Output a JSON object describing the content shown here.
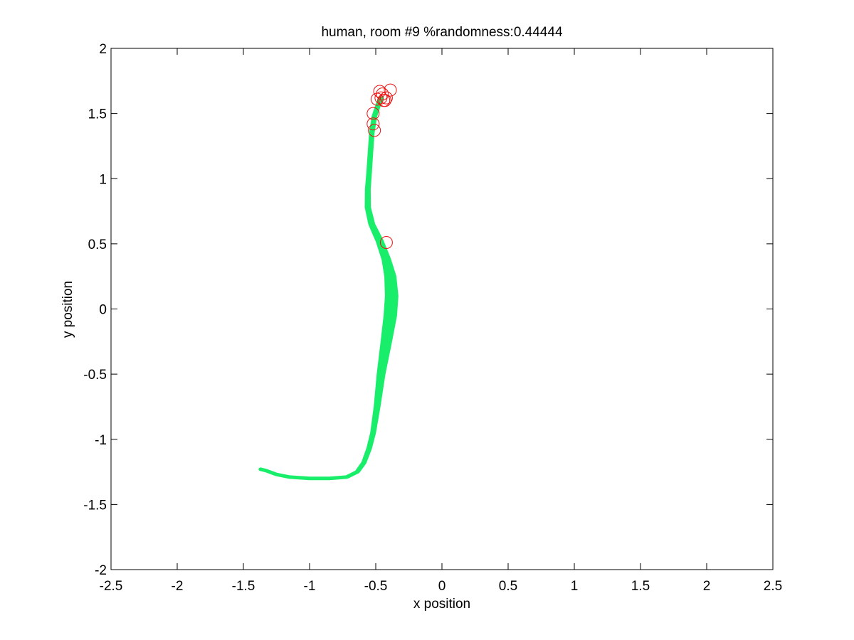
{
  "chart_data": {
    "type": "line",
    "title": "human, room #9 %randomness:0.44444",
    "xlabel": "x position",
    "ylabel": "y position",
    "xlim": [
      -2.5,
      2.5
    ],
    "ylim": [
      -2,
      2
    ],
    "xticks": [
      -2.5,
      -2,
      -1.5,
      -1,
      -0.5,
      0,
      0.5,
      1,
      1.5,
      2,
      2.5
    ],
    "yticks": [
      -2,
      -1.5,
      -1,
      -0.5,
      0,
      0.5,
      1,
      1.5,
      2
    ],
    "xtick_labels": [
      "-2.5",
      "-2",
      "-1.5",
      "-1",
      "-0.5",
      "0",
      "0.5",
      "1",
      "1.5",
      "2",
      "2.5"
    ],
    "ytick_labels": [
      "-2",
      "-1.5",
      "-1",
      "-0.5",
      "0",
      "0.5",
      "1",
      "1.5",
      "2"
    ],
    "grid": false,
    "series": [
      {
        "color": "#19ee6b",
        "style": "trajectory-band",
        "points": [
          [
            -1.37,
            -1.23
          ],
          [
            -1.33,
            -1.24
          ],
          [
            -1.25,
            -1.27
          ],
          [
            -1.15,
            -1.29
          ],
          [
            -1.0,
            -1.3
          ],
          [
            -0.85,
            -1.3
          ],
          [
            -0.72,
            -1.29
          ],
          [
            -0.64,
            -1.25
          ],
          [
            -0.59,
            -1.18
          ],
          [
            -0.55,
            -1.07
          ],
          [
            -0.52,
            -0.95
          ],
          [
            -0.49,
            -0.75
          ],
          [
            -0.46,
            -0.5
          ],
          [
            -0.42,
            -0.25
          ],
          [
            -0.39,
            -0.05
          ],
          [
            -0.38,
            0.1
          ],
          [
            -0.39,
            0.25
          ],
          [
            -0.42,
            0.38
          ],
          [
            -0.47,
            0.52
          ],
          [
            -0.53,
            0.65
          ],
          [
            -0.56,
            0.78
          ],
          [
            -0.56,
            0.92
          ],
          [
            -0.55,
            1.05
          ],
          [
            -0.54,
            1.2
          ],
          [
            -0.53,
            1.35
          ],
          [
            -0.51,
            1.48
          ],
          [
            -0.48,
            1.57
          ],
          [
            -0.46,
            1.62
          ]
        ],
        "band_width": [
          0.01,
          0.012,
          0.015,
          0.016,
          0.016,
          0.016,
          0.016,
          0.017,
          0.018,
          0.02,
          0.022,
          0.03,
          0.045,
          0.065,
          0.08,
          0.08,
          0.07,
          0.05,
          0.04,
          0.03,
          0.025,
          0.022,
          0.02,
          0.02,
          0.02,
          0.02,
          0.02,
          0.02
        ]
      },
      {
        "color": "#ee1111",
        "style": "circle-markers",
        "points": [
          [
            -0.52,
            1.42
          ],
          [
            -0.51,
            1.37
          ],
          [
            -0.52,
            1.5
          ],
          [
            -0.49,
            1.61
          ],
          [
            -0.47,
            1.67
          ],
          [
            -0.46,
            1.62
          ],
          [
            -0.45,
            1.65
          ],
          [
            -0.44,
            1.6
          ],
          [
            -0.43,
            1.6
          ],
          [
            -0.42,
            1.62
          ],
          [
            -0.39,
            1.68
          ],
          [
            -0.42,
            0.51
          ]
        ]
      }
    ]
  }
}
